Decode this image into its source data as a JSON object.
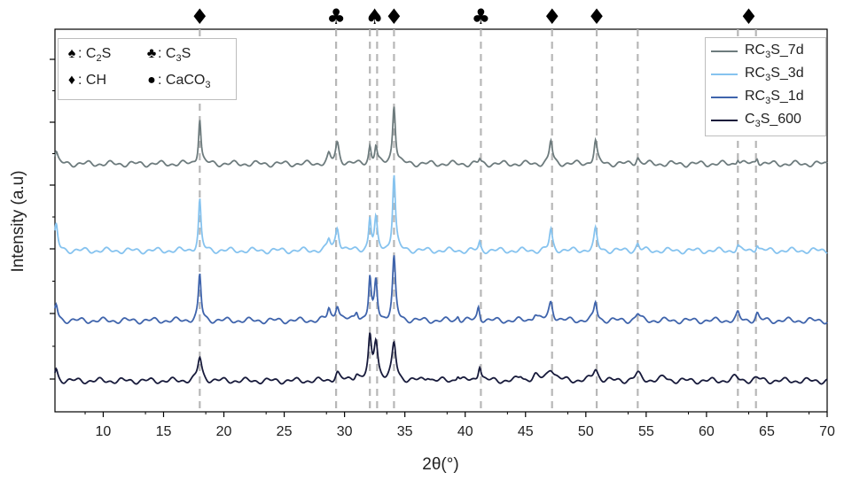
{
  "chart_data": {
    "type": "line",
    "xlabel": "2θ(°)",
    "ylabel": "Intensity (a.u)",
    "xlim": [
      6,
      70
    ],
    "xticks": [
      10,
      15,
      20,
      25,
      30,
      35,
      40,
      45,
      50,
      55,
      60,
      65,
      70
    ],
    "grid": false,
    "legend_position": "top-right",
    "series": [
      {
        "name": "RC3S_7d",
        "label_main": "RC",
        "label_sub": "3",
        "label_tail": "S_7d",
        "color": "#6d7b7d",
        "offset": 3,
        "baseline": 1.0,
        "peaks": [
          [
            6.1,
            0.5,
            0.15
          ],
          [
            18.0,
            2.0,
            0.12
          ],
          [
            28.7,
            0.35,
            0.15
          ],
          [
            29.4,
            0.9,
            0.18
          ],
          [
            32.1,
            0.75,
            0.12
          ],
          [
            32.6,
            0.75,
            0.12
          ],
          [
            34.1,
            2.6,
            0.14
          ],
          [
            41.2,
            0.2,
            0.1
          ],
          [
            47.1,
            1.0,
            0.15
          ],
          [
            50.8,
            1.0,
            0.15
          ],
          [
            54.3,
            0.3,
            0.15
          ],
          [
            62.6,
            0.25,
            0.12
          ],
          [
            64.2,
            0.3,
            0.12
          ]
        ]
      },
      {
        "name": "RC3S_3d",
        "label_main": "RC",
        "label_sub": "3",
        "label_tail": "S_3d",
        "color": "#86c3ef",
        "offset": 2,
        "baseline": 1.0,
        "peaks": [
          [
            6.1,
            1.1,
            0.15
          ],
          [
            18.0,
            2.2,
            0.12
          ],
          [
            28.7,
            0.45,
            0.15
          ],
          [
            29.4,
            1.0,
            0.18
          ],
          [
            32.1,
            1.4,
            0.12
          ],
          [
            32.6,
            1.3,
            0.14
          ],
          [
            34.1,
            3.3,
            0.14
          ],
          [
            41.2,
            0.35,
            0.1
          ],
          [
            47.1,
            0.9,
            0.15
          ],
          [
            50.8,
            0.9,
            0.15
          ],
          [
            54.3,
            0.3,
            0.15
          ],
          [
            62.6,
            0.2,
            0.12
          ],
          [
            64.2,
            0.3,
            0.12
          ]
        ]
      },
      {
        "name": "RC3S_1d",
        "label_main": "RC",
        "label_sub": "3",
        "label_tail": "S_1d",
        "color": "#3f64ac",
        "offset": 1,
        "baseline": 1.0,
        "peaks": [
          [
            6.1,
            0.7,
            0.15
          ],
          [
            18.0,
            2.0,
            0.13
          ],
          [
            28.7,
            0.5,
            0.15
          ],
          [
            29.4,
            0.7,
            0.18
          ],
          [
            31.0,
            0.4,
            0.15
          ],
          [
            32.1,
            1.8,
            0.12
          ],
          [
            32.6,
            1.7,
            0.14
          ],
          [
            34.1,
            2.7,
            0.15
          ],
          [
            39.4,
            0.2,
            0.12
          ],
          [
            41.1,
            0.6,
            0.12
          ],
          [
            45.8,
            0.3,
            0.2
          ],
          [
            47.1,
            0.8,
            0.2
          ],
          [
            50.8,
            0.8,
            0.15
          ],
          [
            54.3,
            0.3,
            0.2
          ],
          [
            62.6,
            0.3,
            0.15
          ],
          [
            64.2,
            0.3,
            0.15
          ]
        ]
      },
      {
        "name": "C3S_600",
        "label_main": "C",
        "label_sub": "3",
        "label_tail": "S_600",
        "color": "#171a3b",
        "offset": 0,
        "baseline": 1.0,
        "peaks": [
          [
            6.1,
            0.5,
            0.15
          ],
          [
            18.0,
            1.0,
            0.2
          ],
          [
            29.4,
            0.35,
            0.2
          ],
          [
            31.0,
            0.3,
            0.2
          ],
          [
            32.1,
            1.7,
            0.15
          ],
          [
            32.6,
            1.7,
            0.2
          ],
          [
            34.1,
            1.6,
            0.2
          ],
          [
            36.9,
            0.2,
            0.2
          ],
          [
            39.4,
            0.25,
            0.15
          ],
          [
            41.2,
            0.7,
            0.15
          ],
          [
            44.6,
            0.2,
            0.2
          ],
          [
            45.8,
            0.2,
            0.25
          ],
          [
            47.1,
            0.55,
            0.35
          ],
          [
            50.8,
            0.5,
            0.25
          ],
          [
            54.3,
            0.3,
            0.3
          ],
          [
            56.5,
            0.15,
            0.3
          ],
          [
            62.4,
            0.15,
            0.3
          ],
          [
            64.2,
            0.1,
            0.3
          ]
        ]
      }
    ],
    "reference_lines": [
      18.0,
      29.3,
      32.1,
      32.7,
      34.1,
      41.3,
      47.2,
      50.9,
      54.3,
      62.6,
      64.1
    ],
    "markers": [
      {
        "x": 18.0,
        "symbol": "♦"
      },
      {
        "x": 29.3,
        "symbol": "♣"
      },
      {
        "x": 32.5,
        "symbol": "♠"
      },
      {
        "x": 34.1,
        "symbol": "♦"
      },
      {
        "x": 41.3,
        "symbol": "♣"
      },
      {
        "x": 47.2,
        "symbol": "♦"
      },
      {
        "x": 50.9,
        "symbol": "♦"
      },
      {
        "x": 63.5,
        "symbol": "♦"
      }
    ],
    "key": [
      {
        "symbol": "♠",
        "text_main": ": C",
        "text_sub": "2",
        "text_tail": "S"
      },
      {
        "symbol": "♣",
        "text_main": ": C",
        "text_sub": "3",
        "text_tail": "S"
      },
      {
        "symbol": "♦",
        "text_main": ": CH",
        "text_sub": "",
        "text_tail": ""
      },
      {
        "symbol": "●",
        "text_main": ": CaCO",
        "text_sub": "3",
        "text_tail": ""
      }
    ]
  }
}
